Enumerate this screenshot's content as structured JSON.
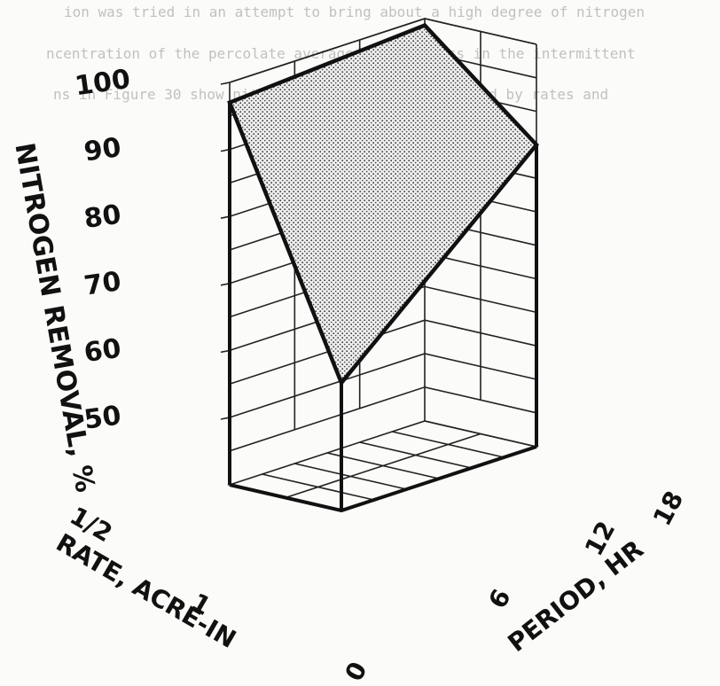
{
  "background_text": [
    "ion was tried in an attempt to bring about a high degree of nitrogen",
    "ncentration of the percolate averaged 50% or less in the intermittent",
    "ns in Figure 30 show nitrogen removal to be affected by rates and"
  ],
  "chart_data": {
    "type": "3d-surface",
    "title": "",
    "zlabel": "NITROGEN REMOVAL, %",
    "xlabel": "RATE, ACRE-IN",
    "ylabel": "PERIOD, HR",
    "z_ticks": [
      "50",
      "60",
      "70",
      "80",
      "90",
      "100"
    ],
    "z_range": [
      45,
      100
    ],
    "rate_ticks": [
      "1/2",
      "1"
    ],
    "period_ticks": [
      "0",
      "6",
      "12",
      "18"
    ],
    "grid": true,
    "surface": {
      "fill": "stippled gray",
      "points": [
        {
          "rate": "1/2",
          "period": 0,
          "removal": 97
        },
        {
          "rate": "1/2",
          "period": 18,
          "removal": 99
        },
        {
          "rate": "1",
          "period": 18,
          "removal": 85
        },
        {
          "rate": "1",
          "period": 0,
          "removal": 59
        }
      ]
    }
  }
}
